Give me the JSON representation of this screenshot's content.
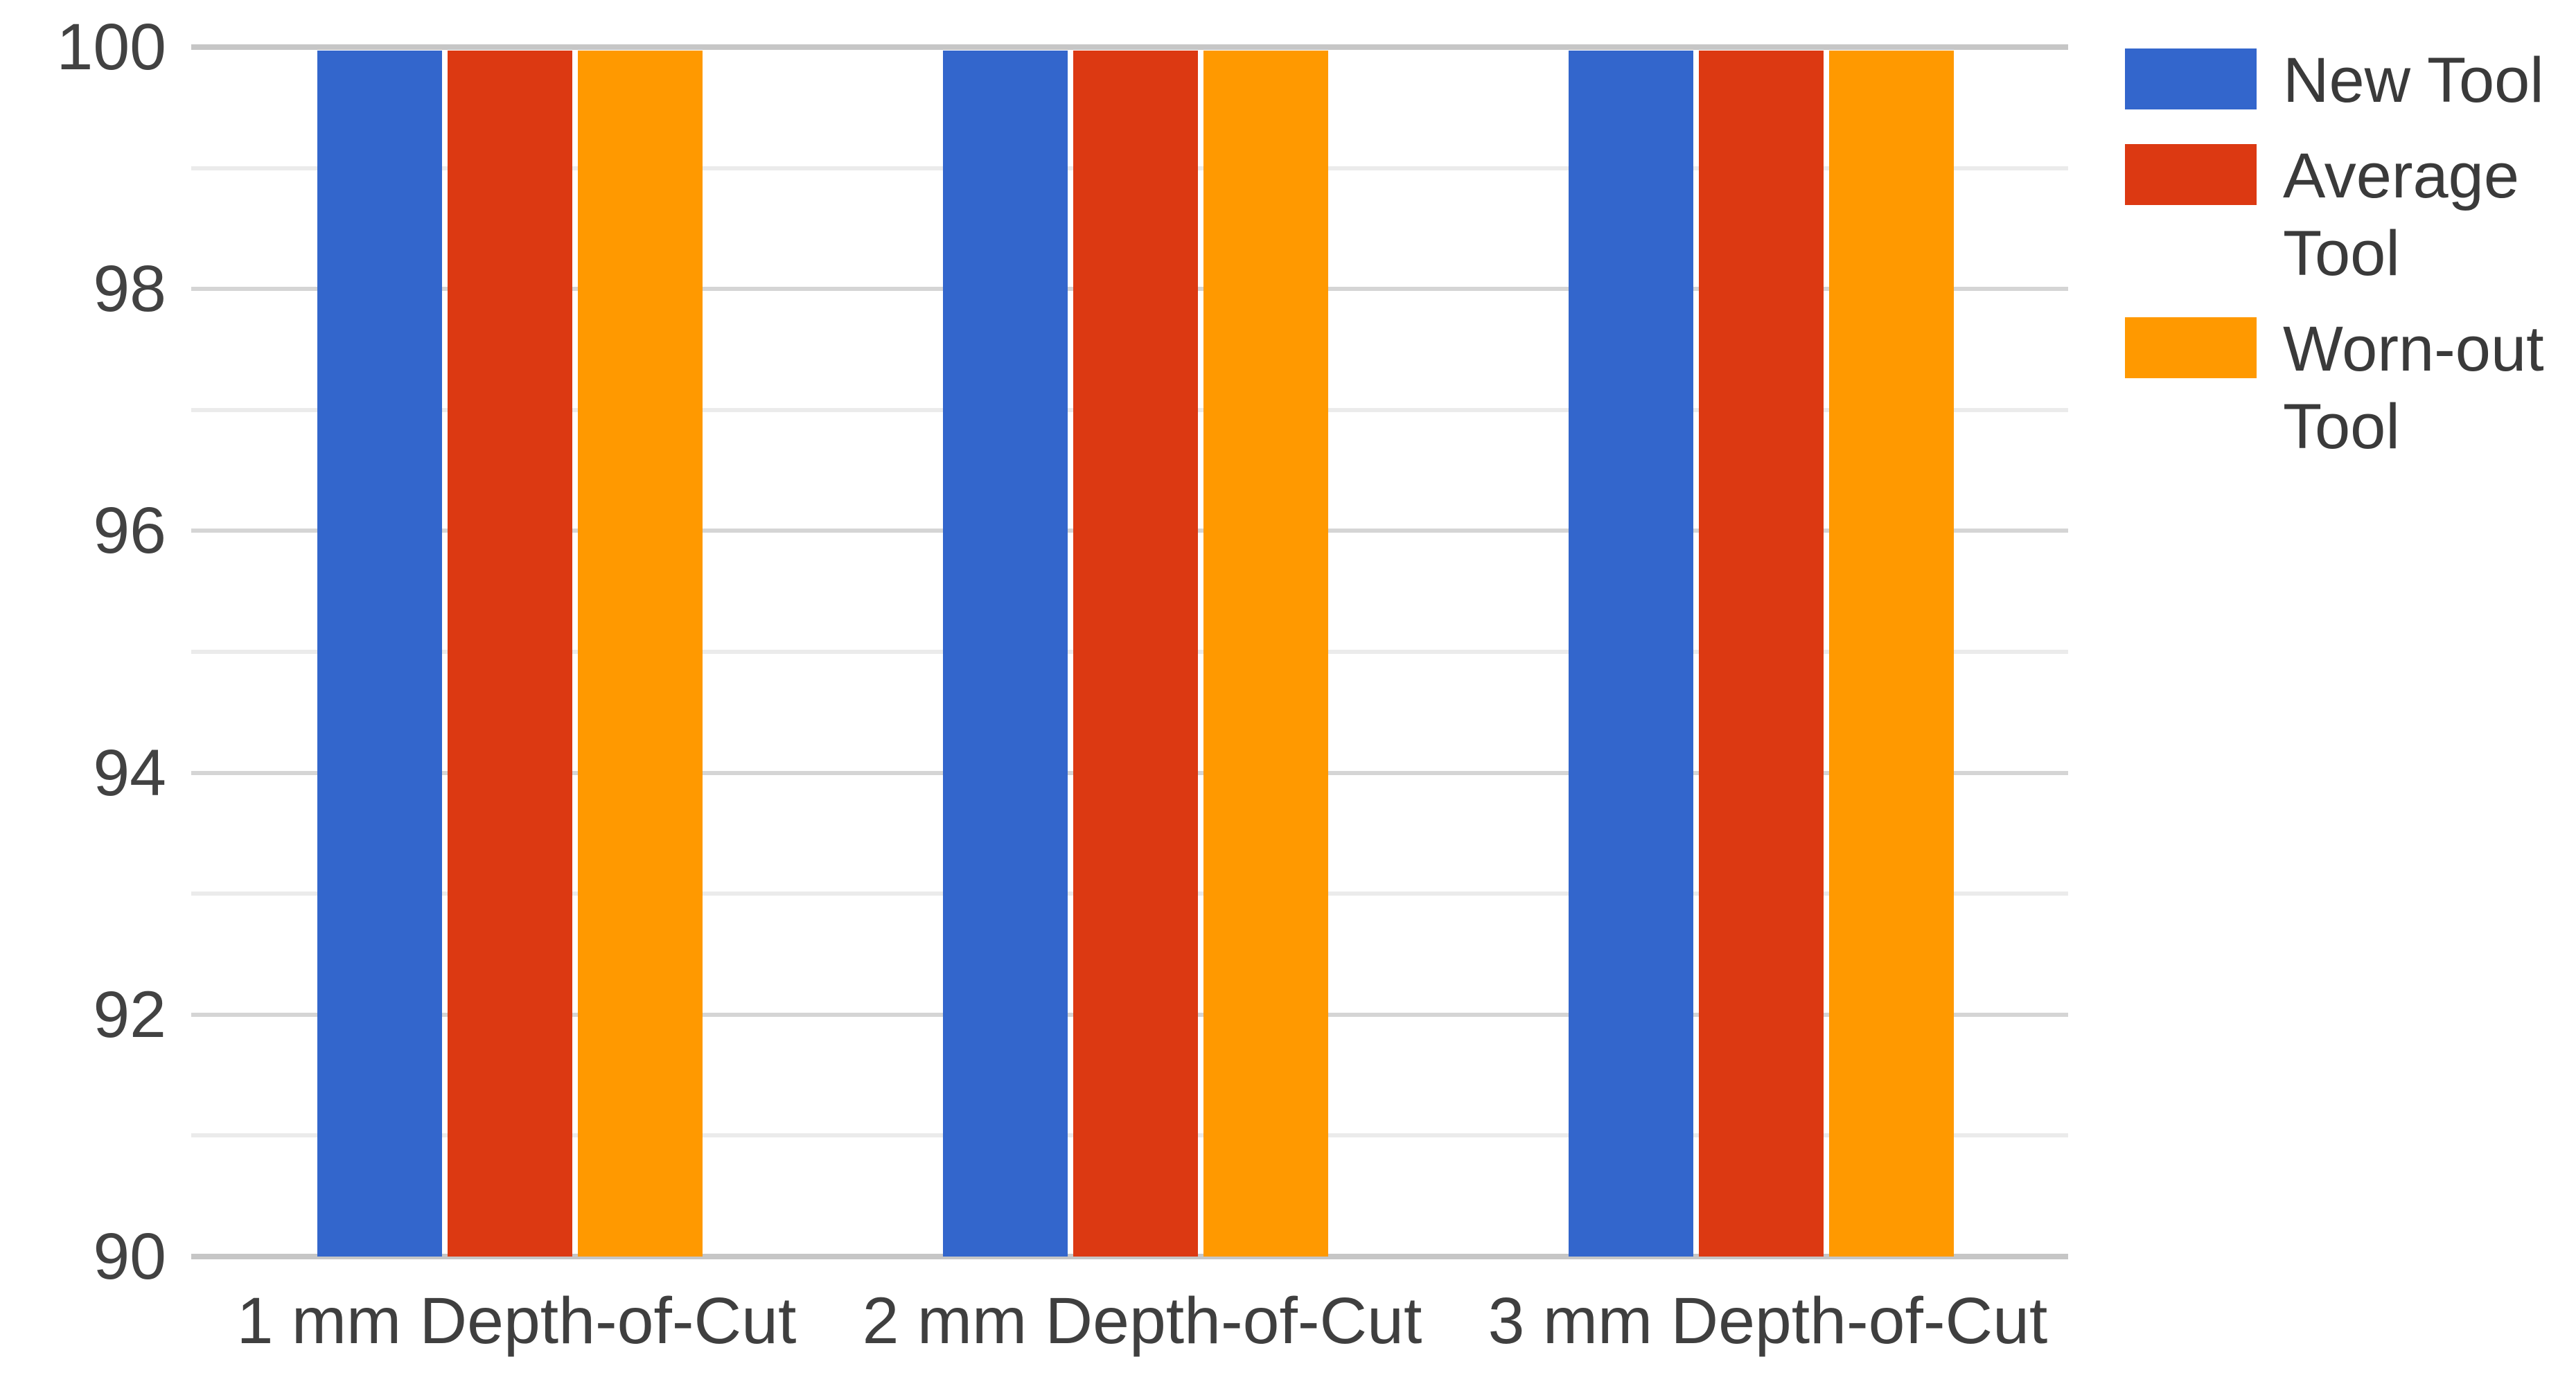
{
  "chart_data": {
    "type": "bar",
    "title": "",
    "xlabel": "",
    "ylabel": "",
    "categories": [
      "1 mm Depth-of-Cut",
      "2 mm Depth-of-Cut",
      "3 mm Depth-of-Cut"
    ],
    "series": [
      {
        "name": "New Tool",
        "color": "#3366CC",
        "values": [
          100,
          100,
          100
        ]
      },
      {
        "name": "Average Tool",
        "color": "#DC3912",
        "values": [
          100,
          100,
          100
        ]
      },
      {
        "name": "Worn-out Tool",
        "color": "#FF9900",
        "values": [
          100,
          100,
          100
        ]
      }
    ],
    "ylim": [
      90,
      100
    ],
    "yticks_major": [
      90,
      92,
      94,
      96,
      98,
      100
    ],
    "yticks_minor": [
      91,
      93,
      95,
      97,
      99
    ],
    "grid": true,
    "legend_position": "right",
    "gridline_color": "#d5d5d5",
    "minor_gridline_color": "#ebebeb",
    "boundary_gridline_color": "#c6c6c6",
    "background_color": "#ffffff",
    "axis_text_color": "#424242"
  }
}
